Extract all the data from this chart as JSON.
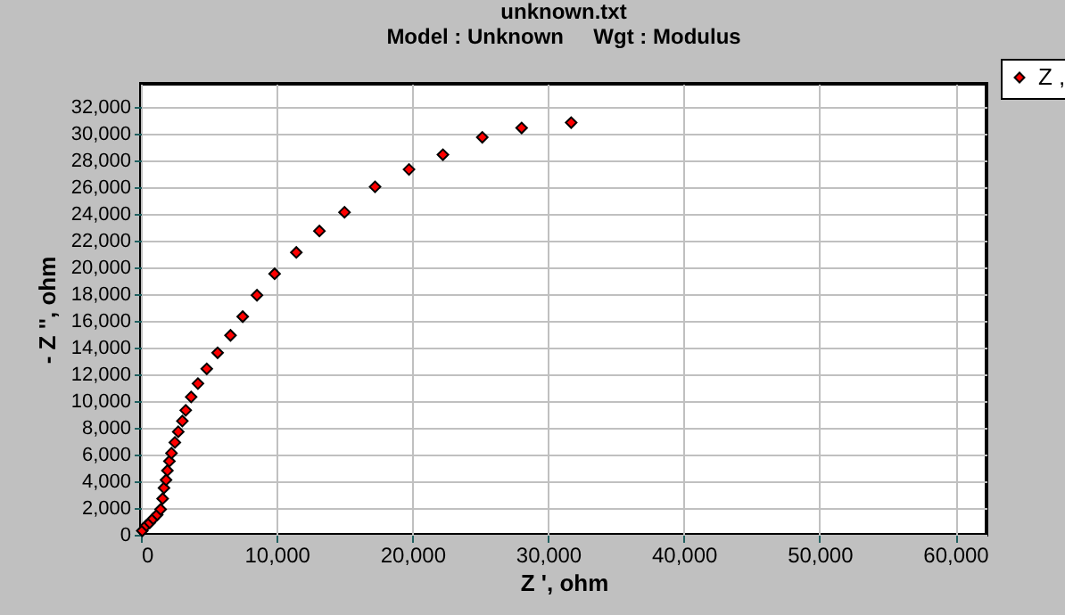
{
  "chart_data": {
    "type": "scatter",
    "title": "unknown.txt",
    "subtitle": "Model : Unknown     Wgt : Modulus",
    "xlabel": "Z ',  ohm",
    "ylabel": "- Z '', ohm",
    "x": [
      100,
      400,
      650,
      900,
      1200,
      1450,
      1600,
      1700,
      1850,
      1950,
      2100,
      2250,
      2500,
      2750,
      3050,
      3300,
      3700,
      4200,
      4850,
      5650,
      6600,
      7500,
      8550,
      9850,
      11450,
      13150,
      15000,
      17250,
      19750,
      22250,
      25150,
      28050,
      31700
    ],
    "series": [
      {
        "name": "Z ,",
        "color": "#ff0000",
        "values": [
          300,
          700,
          900,
          1200,
          1500,
          1900,
          2700,
          3500,
          4100,
          4800,
          5500,
          6100,
          6900,
          7700,
          8500,
          9300,
          10300,
          11300,
          12400,
          13600,
          14900,
          16300,
          17900,
          19500,
          21100,
          22700,
          24100,
          26000,
          27300,
          28400,
          29700,
          30400,
          30800
        ]
      }
    ],
    "xlim": [
      0,
      62300
    ],
    "xticks": [
      {
        "value": 0,
        "label": "0"
      },
      {
        "value": 10000,
        "label": "10,000"
      },
      {
        "value": 20000,
        "label": "20,000"
      },
      {
        "value": 30000,
        "label": "30,000"
      },
      {
        "value": 40000,
        "label": "40,000"
      },
      {
        "value": 50000,
        "label": "50,000"
      },
      {
        "value": 60000,
        "label": "60,000"
      }
    ],
    "ylim": [
      0,
      33700
    ],
    "yticks": [
      {
        "value": 0,
        "label": "0"
      },
      {
        "value": 2000,
        "label": "2,000"
      },
      {
        "value": 4000,
        "label": "4,000"
      },
      {
        "value": 6000,
        "label": "6,000"
      },
      {
        "value": 8000,
        "label": "8,000"
      },
      {
        "value": 10000,
        "label": "10,000"
      },
      {
        "value": 12000,
        "label": "12,000"
      },
      {
        "value": 14000,
        "label": "14,000"
      },
      {
        "value": 16000,
        "label": "16,000"
      },
      {
        "value": 18000,
        "label": "18,000"
      },
      {
        "value": 20000,
        "label": "20,000"
      },
      {
        "value": 22000,
        "label": "22,000"
      },
      {
        "value": 24000,
        "label": "24,000"
      },
      {
        "value": 26000,
        "label": "26,000"
      },
      {
        "value": 28000,
        "label": "28,000"
      },
      {
        "value": 30000,
        "label": "30,000"
      },
      {
        "value": 32000,
        "label": "32,000"
      }
    ],
    "grid": true,
    "legend": "top right",
    "marker": "diamond"
  }
}
